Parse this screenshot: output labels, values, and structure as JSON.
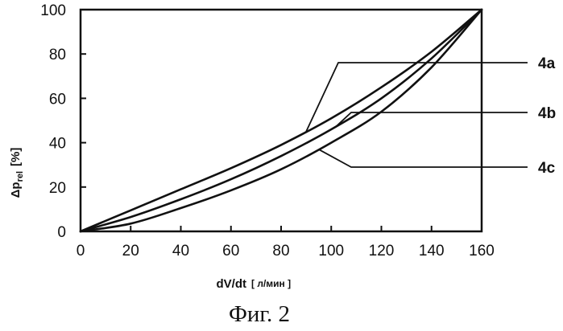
{
  "chart_data": {
    "type": "line",
    "xlabel": "dV/dt",
    "xunit": "[ л/мин ]",
    "ylabel_main": "Δp",
    "ylabel_sub": "rel",
    "ylabel_unit": "[%]",
    "xlim": [
      0,
      160
    ],
    "ylim": [
      0,
      100
    ],
    "xticks": [
      "0",
      "20",
      "40",
      "60",
      "80",
      "100",
      "120",
      "140",
      "160"
    ],
    "yticks": [
      "0",
      "20",
      "40",
      "60",
      "80",
      "100"
    ],
    "grid": false,
    "series": [
      {
        "name": "4a",
        "x": [
          0,
          20,
          40,
          60,
          80,
          100,
          120,
          140,
          160
        ],
        "y": [
          0,
          9.5,
          19,
          28.5,
          39,
          51,
          65,
          81,
          100
        ]
      },
      {
        "name": "4b",
        "x": [
          0,
          20,
          40,
          60,
          80,
          100,
          120,
          140,
          160
        ],
        "y": [
          0,
          6.5,
          14.5,
          23.5,
          34,
          46,
          60,
          78,
          100
        ]
      },
      {
        "name": "4c",
        "x": [
          0,
          20,
          40,
          60,
          80,
          100,
          120,
          140,
          160
        ],
        "y": [
          0,
          3.5,
          10.5,
          18.5,
          28,
          40,
          54,
          74,
          100
        ]
      }
    ],
    "annotations": [
      {
        "series": "4a",
        "at_x": 90
      },
      {
        "series": "4b",
        "at_x": 102
      },
      {
        "series": "4c",
        "at_x": 95
      }
    ]
  },
  "caption": "Фиг. 2"
}
